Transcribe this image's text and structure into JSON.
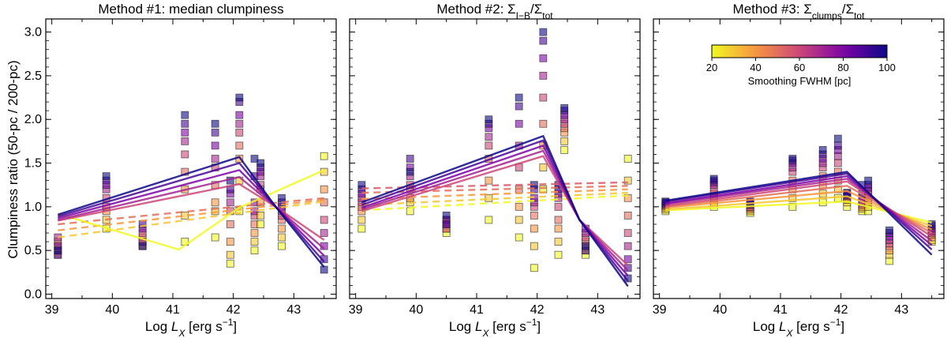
{
  "figure": {
    "ylabel": "Clumpiness ratio (50-pc / 200-pc)",
    "xlabel": "Log L_X [erg s^-1]",
    "xlim": [
      38.9,
      43.7
    ],
    "ylim": [
      -0.05,
      3.15
    ],
    "xticks": [
      39,
      40,
      41,
      42,
      43
    ],
    "yticks": [
      0.0,
      0.5,
      1.0,
      1.5,
      2.0,
      2.5,
      3.0
    ],
    "ytick_labels": [
      "0.0",
      "0.5",
      "1.0",
      "1.5",
      "2.0",
      "2.5",
      "3.0"
    ]
  },
  "colorbar": {
    "label": "Smoothing FWHM [pc]",
    "ticks": [
      "20",
      "40",
      "60",
      "80",
      "100"
    ],
    "range": [
      20,
      100
    ],
    "colormap": "plasma"
  },
  "chart_data": [
    {
      "type": "scatter",
      "title": "Method #1: median clumpiness",
      "fwhm": [
        20,
        30,
        40,
        50,
        60,
        70,
        80,
        90,
        100
      ],
      "x": [
        39.1,
        39.9,
        40.5,
        41.2,
        41.7,
        41.95,
        42.1,
        42.35,
        42.45,
        42.8,
        43.5
      ],
      "points": [
        [
          0.5,
          0.55,
          0.45,
          0.6,
          0.5,
          0.65,
          0.55,
          0.45,
          0.5
        ],
        [
          0.75,
          0.85,
          0.95,
          1.0,
          1.1,
          1.2,
          1.25,
          1.3,
          1.35
        ],
        [
          0.55,
          0.6,
          0.65,
          0.55,
          0.7,
          0.6,
          0.75,
          0.8,
          0.55
        ],
        [
          0.6,
          0.9,
          1.2,
          1.4,
          1.6,
          1.75,
          1.85,
          1.95,
          2.05
        ],
        [
          0.65,
          0.95,
          1.05,
          1.25,
          1.45,
          1.55,
          1.7,
          1.85,
          1.95
        ],
        [
          0.35,
          0.45,
          0.6,
          0.8,
          0.95,
          1.05,
          1.15,
          1.2,
          1.3
        ],
        [
          0.95,
          1.3,
          1.55,
          1.7,
          1.85,
          1.95,
          2.05,
          2.2,
          2.25
        ],
        [
          0.5,
          0.6,
          0.7,
          0.8,
          0.9,
          0.95,
          1.05,
          1.35,
          1.55
        ],
        [
          0.8,
          0.9,
          1.05,
          1.2,
          1.25,
          1.35,
          1.4,
          1.45,
          1.5
        ],
        [
          0.55,
          0.65,
          0.75,
          0.85,
          0.9,
          0.95,
          1.0,
          1.05,
          1.1
        ],
        [
          1.58,
          1.4,
          1.2,
          1.05,
          0.85,
          0.7,
          0.55,
          0.4,
          0.28
        ]
      ],
      "fit_solid": [
        {
          "fwhm": 20,
          "points": [
            [
              39.1,
              0.92
            ],
            [
              41.1,
              0.51
            ],
            [
              42.1,
              0.99
            ],
            [
              43.5,
              1.42
            ]
          ]
        },
        {
          "fwhm": 60,
          "points": [
            [
              39.1,
              0.84
            ],
            [
              42.1,
              1.26
            ],
            [
              42.7,
              1.0
            ],
            [
              43.5,
              0.62
            ]
          ]
        },
        {
          "fwhm": 70,
          "points": [
            [
              39.1,
              0.85
            ],
            [
              42.1,
              1.34
            ],
            [
              42.7,
              1.0
            ],
            [
              43.5,
              0.52
            ]
          ]
        },
        {
          "fwhm": 80,
          "points": [
            [
              39.1,
              0.87
            ],
            [
              42.1,
              1.42
            ],
            [
              42.7,
              1.0
            ],
            [
              43.5,
              0.44
            ]
          ]
        },
        {
          "fwhm": 90,
          "points": [
            [
              39.1,
              0.89
            ],
            [
              42.1,
              1.5
            ],
            [
              42.7,
              1.0
            ],
            [
              43.5,
              0.37
            ]
          ]
        },
        {
          "fwhm": 100,
          "points": [
            [
              39.1,
              0.91
            ],
            [
              42.1,
              1.57
            ],
            [
              42.7,
              1.0
            ],
            [
              43.5,
              0.31
            ]
          ]
        }
      ],
      "fit_dashed": [
        {
          "fwhm": 30,
          "points": [
            [
              39.1,
              0.65
            ],
            [
              43.5,
              1.06
            ]
          ]
        },
        {
          "fwhm": 40,
          "points": [
            [
              39.1,
              0.73
            ],
            [
              43.5,
              1.08
            ]
          ]
        },
        {
          "fwhm": 50,
          "points": [
            [
              39.1,
              0.8
            ],
            [
              43.5,
              1.1
            ]
          ]
        }
      ]
    },
    {
      "type": "scatter",
      "title": "Method #2: Σ_{I−B}/Σ_tot",
      "fwhm": [
        20,
        30,
        40,
        50,
        60,
        70,
        80,
        90,
        100
      ],
      "x": [
        39.1,
        39.9,
        40.5,
        41.2,
        41.7,
        41.95,
        42.1,
        42.35,
        42.45,
        42.8,
        43.5
      ],
      "points": [
        [
          0.75,
          0.85,
          0.95,
          1.0,
          1.05,
          1.1,
          1.15,
          1.2,
          1.25
        ],
        [
          0.95,
          1.05,
          1.1,
          1.2,
          1.25,
          1.35,
          1.45,
          1.55,
          1.4
        ],
        [
          0.7,
          0.75,
          0.8,
          0.85,
          0.75,
          0.8,
          0.85,
          0.8,
          0.9
        ],
        [
          0.85,
          1.1,
          1.3,
          1.55,
          1.7,
          1.8,
          1.9,
          1.95,
          2.0
        ],
        [
          0.65,
          0.85,
          1.0,
          1.2,
          1.45,
          1.7,
          1.95,
          2.15,
          2.25
        ],
        [
          0.3,
          0.55,
          0.75,
          0.9,
          1.0,
          1.05,
          1.1,
          1.2,
          1.25
        ],
        [
          1.2,
          1.45,
          1.7,
          1.95,
          2.25,
          2.5,
          2.7,
          2.9,
          3.0
        ],
        [
          0.45,
          0.6,
          0.75,
          0.85,
          1.0,
          1.1,
          1.15,
          1.2,
          1.25
        ],
        [
          1.65,
          1.75,
          1.85,
          1.9,
          1.95,
          2.0,
          2.05,
          2.1,
          2.13
        ],
        [
          0.45,
          0.5,
          0.55,
          0.6,
          0.65,
          0.7,
          0.75,
          0.5,
          0.55
        ],
        [
          1.55,
          1.3,
          1.1,
          0.9,
          0.7,
          0.55,
          0.4,
          0.3,
          0.18
        ]
      ],
      "fit_solid": [
        {
          "fwhm": 60,
          "points": [
            [
              39.1,
              0.95
            ],
            [
              42.1,
              1.58
            ],
            [
              42.7,
              0.85
            ],
            [
              43.5,
              0.33
            ]
          ]
        },
        {
          "fwhm": 70,
          "points": [
            [
              39.1,
              0.97
            ],
            [
              42.1,
              1.64
            ],
            [
              42.7,
              0.85
            ],
            [
              43.5,
              0.27
            ]
          ]
        },
        {
          "fwhm": 80,
          "points": [
            [
              39.1,
              0.99
            ],
            [
              42.1,
              1.7
            ],
            [
              42.7,
              0.85
            ],
            [
              43.5,
              0.21
            ]
          ]
        },
        {
          "fwhm": 90,
          "points": [
            [
              39.1,
              1.02
            ],
            [
              42.1,
              1.76
            ],
            [
              42.7,
              0.85
            ],
            [
              43.5,
              0.15
            ]
          ]
        },
        {
          "fwhm": 100,
          "points": [
            [
              39.1,
              1.05
            ],
            [
              42.1,
              1.81
            ],
            [
              42.7,
              0.85
            ],
            [
              43.5,
              0.09
            ]
          ]
        }
      ],
      "fit_dashed": [
        {
          "fwhm": 20,
          "points": [
            [
              39.1,
              0.96
            ],
            [
              43.5,
              1.13
            ]
          ]
        },
        {
          "fwhm": 30,
          "points": [
            [
              39.1,
              1.02
            ],
            [
              43.5,
              1.16
            ]
          ]
        },
        {
          "fwhm": 40,
          "points": [
            [
              39.1,
              1.09
            ],
            [
              43.5,
              1.2
            ]
          ]
        },
        {
          "fwhm": 50,
          "points": [
            [
              39.1,
              1.16
            ],
            [
              43.5,
              1.24
            ]
          ]
        },
        {
          "fwhm": 55,
          "points": [
            [
              39.1,
              1.21
            ],
            [
              43.5,
              1.28
            ]
          ]
        }
      ]
    },
    {
      "type": "scatter",
      "title": "Method #3: Σ_clumps/Σ_tot",
      "fwhm": [
        20,
        30,
        40,
        50,
        60,
        70,
        80,
        90,
        100
      ],
      "x": [
        39.1,
        39.9,
        40.5,
        41.2,
        41.7,
        41.95,
        42.1,
        42.35,
        42.45,
        42.8,
        43.5
      ],
      "points": [
        [
          0.95,
          0.97,
          0.99,
          1.01,
          1.02,
          1.03,
          1.04,
          1.05,
          1.06
        ],
        [
          1.0,
          1.05,
          1.1,
          1.15,
          1.2,
          1.25,
          1.28,
          1.3,
          1.32
        ],
        [
          0.93,
          0.95,
          0.97,
          0.99,
          1.0,
          1.02,
          1.03,
          1.05,
          1.06
        ],
        [
          1.0,
          1.1,
          1.2,
          1.3,
          1.4,
          1.45,
          1.5,
          1.53,
          1.55
        ],
        [
          1.05,
          1.15,
          1.25,
          1.35,
          1.45,
          1.5,
          1.55,
          1.6,
          1.65
        ],
        [
          1.1,
          1.2,
          1.3,
          1.4,
          1.5,
          1.58,
          1.65,
          1.7,
          1.78
        ],
        [
          1.0,
          1.05,
          1.08,
          1.1,
          1.12,
          1.13,
          1.14,
          1.15,
          1.16
        ],
        [
          0.95,
          0.98,
          1.0,
          1.02,
          1.04,
          1.06,
          1.1,
          1.15,
          1.25
        ],
        [
          0.95,
          1.0,
          1.05,
          1.1,
          1.15,
          1.18,
          1.22,
          1.25,
          1.3
        ],
        [
          0.38,
          0.45,
          0.5,
          0.55,
          0.58,
          0.62,
          0.66,
          0.7,
          0.73
        ],
        [
          0.6,
          0.62,
          0.65,
          0.68,
          0.7,
          0.72,
          0.75,
          0.78,
          0.8
        ]
      ],
      "fit_solid": [
        {
          "fwhm": 20,
          "points": [
            [
              39.1,
              0.96
            ],
            [
              42.1,
              1.06
            ],
            [
              43.5,
              0.82
            ]
          ]
        },
        {
          "fwhm": 30,
          "points": [
            [
              39.1,
              0.97
            ],
            [
              42.1,
              1.12
            ],
            [
              43.5,
              0.78
            ]
          ]
        },
        {
          "fwhm": 40,
          "points": [
            [
              39.1,
              0.99
            ],
            [
              42.1,
              1.18
            ],
            [
              43.5,
              0.74
            ]
          ]
        },
        {
          "fwhm": 50,
          "points": [
            [
              39.1,
              1.0
            ],
            [
              42.1,
              1.24
            ],
            [
              43.5,
              0.7
            ]
          ]
        },
        {
          "fwhm": 60,
          "points": [
            [
              39.1,
              1.01
            ],
            [
              42.1,
              1.29
            ],
            [
              43.5,
              0.66
            ]
          ]
        },
        {
          "fwhm": 70,
          "points": [
            [
              39.1,
              1.03
            ],
            [
              42.1,
              1.32
            ],
            [
              43.5,
              0.61
            ]
          ]
        },
        {
          "fwhm": 80,
          "points": [
            [
              39.1,
              1.04
            ],
            [
              42.1,
              1.35
            ],
            [
              43.5,
              0.56
            ]
          ]
        },
        {
          "fwhm": 90,
          "points": [
            [
              39.1,
              1.06
            ],
            [
              42.1,
              1.38
            ],
            [
              43.5,
              0.51
            ]
          ]
        },
        {
          "fwhm": 100,
          "points": [
            [
              39.1,
              1.07
            ],
            [
              42.1,
              1.4
            ],
            [
              43.5,
              0.45
            ]
          ]
        }
      ],
      "fit_dashed": []
    }
  ]
}
